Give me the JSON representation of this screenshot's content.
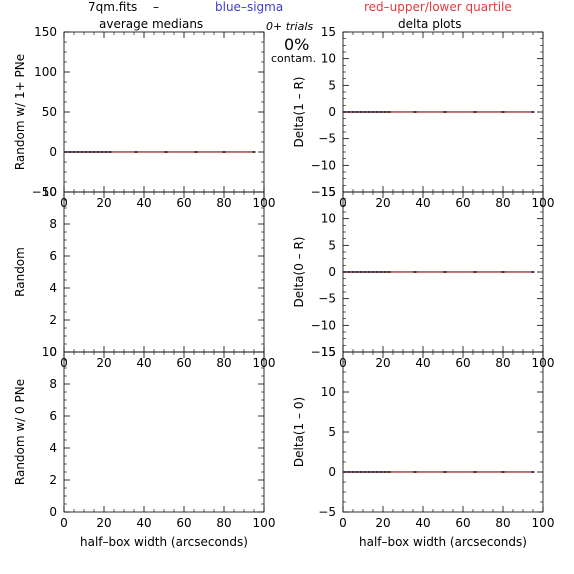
{
  "header": {
    "file_label": "7qm.fits",
    "dash": "–",
    "blue_label": "blue–sigma",
    "red_label": "red–upper/lower quartile",
    "trials": "0+ trials",
    "percent": "0%",
    "contam": "contam.",
    "left_title": "average medians",
    "right_title": "delta plots"
  },
  "colors": {
    "axis": "#000000",
    "blue": "#3b3bd6",
    "red": "#e8383c",
    "median": "#000000"
  },
  "chart_data": [
    {
      "type": "line",
      "id": "p1",
      "ylabel": "Random w/ 1+ PNe",
      "xlim": [
        0,
        100
      ],
      "ylim": [
        -50,
        150
      ],
      "xticks": [
        0,
        20,
        40,
        60,
        80,
        100
      ],
      "yticks": [
        -50,
        0,
        50,
        100,
        150
      ],
      "series": [
        {
          "role": "median",
          "x": [
            1,
            3,
            5,
            7,
            9,
            11,
            13,
            15,
            17,
            19,
            21,
            23,
            36,
            51,
            66,
            80,
            95
          ],
          "y": [
            0,
            0,
            0,
            0,
            0,
            0,
            0,
            0,
            0,
            0,
            0,
            0,
            0,
            0,
            0,
            0,
            0
          ]
        }
      ]
    },
    {
      "type": "line",
      "id": "p2",
      "ylabel": "Delta(1 – R)",
      "xlim": [
        0,
        100
      ],
      "ylim": [
        -15,
        15
      ],
      "xticks": [
        0,
        20,
        40,
        60,
        80,
        100
      ],
      "yticks": [
        -15,
        -10,
        -5,
        0,
        5,
        10,
        15
      ],
      "series": [
        {
          "role": "median",
          "x": [
            1,
            3,
            5,
            7,
            9,
            11,
            13,
            15,
            17,
            19,
            21,
            23,
            36,
            51,
            66,
            80,
            95
          ],
          "y": [
            0,
            0,
            0,
            0,
            0,
            0,
            0,
            0,
            0,
            0,
            0,
            0,
            0,
            0,
            0,
            0,
            0
          ]
        }
      ]
    },
    {
      "type": "line",
      "id": "p3",
      "ylabel": "Random",
      "xlim": [
        0,
        100
      ],
      "ylim": [
        0,
        10
      ],
      "xticks": [
        0,
        20,
        40,
        60,
        80,
        100
      ],
      "yticks": [
        0,
        2,
        4,
        6,
        8,
        10
      ],
      "series": []
    },
    {
      "type": "line",
      "id": "p4",
      "ylabel": "Delta(0 – R)",
      "xlim": [
        0,
        100
      ],
      "ylim": [
        -15,
        15
      ],
      "xticks": [
        0,
        20,
        40,
        60,
        80,
        100
      ],
      "yticks": [
        -15,
        -10,
        -5,
        0,
        5,
        10,
        15
      ],
      "series": [
        {
          "role": "median",
          "x": [
            1,
            3,
            5,
            7,
            9,
            11,
            13,
            15,
            17,
            19,
            21,
            23,
            36,
            51,
            66,
            80,
            95
          ],
          "y": [
            0,
            0,
            0,
            0,
            0,
            0,
            0,
            0,
            0,
            0,
            0,
            0,
            0,
            0,
            0,
            0,
            0
          ]
        }
      ]
    },
    {
      "type": "line",
      "id": "p5",
      "ylabel": "Random w/ 0 PNe",
      "xlabel": "half–box width (arcseconds)",
      "xlim": [
        0,
        100
      ],
      "ylim": [
        0,
        10
      ],
      "xticks": [
        0,
        20,
        40,
        60,
        80,
        100
      ],
      "yticks": [
        0,
        2,
        4,
        6,
        8,
        10
      ],
      "series": []
    },
    {
      "type": "line",
      "id": "p6",
      "ylabel": "Delta(1 – 0)",
      "xlabel": "half–box width (arcseconds)",
      "xlim": [
        0,
        100
      ],
      "ylim": [
        -5,
        15
      ],
      "xticks": [
        0,
        20,
        40,
        60,
        80,
        100
      ],
      "yticks": [
        -5,
        0,
        5,
        10,
        15
      ],
      "series": [
        {
          "role": "median",
          "x": [
            1,
            3,
            5,
            7,
            9,
            11,
            13,
            15,
            17,
            19,
            21,
            23,
            36,
            51,
            66,
            80,
            95
          ],
          "y": [
            0,
            0,
            0,
            0,
            0,
            0,
            0,
            0,
            0,
            0,
            0,
            0,
            0,
            0,
            0,
            0,
            0
          ]
        }
      ]
    }
  ]
}
